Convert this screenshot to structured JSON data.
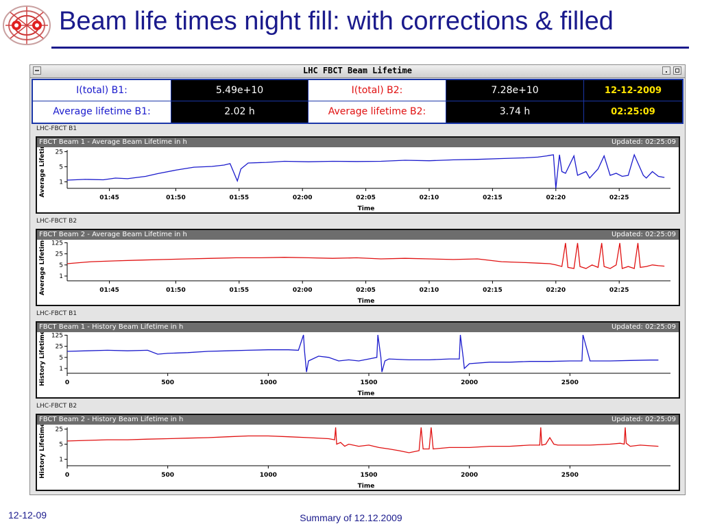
{
  "slide": {
    "title": "Beam life times night fill: with corrections & filled",
    "footer_date": "12-12-09",
    "footer_center": "Summary of 12.12.2009",
    "logo_icon": "lhc-logo-icon"
  },
  "window": {
    "title": "LHC FBCT Beam Lifetime"
  },
  "info": {
    "b1_total_label": "I(total) B1:",
    "b1_total_value": "5.49e+10",
    "b2_total_label": "I(total) B2:",
    "b2_total_value": "7.28e+10",
    "b1_life_label": "Average lifetime B1:",
    "b1_life_value": "2.02 h",
    "b2_life_label": "Average lifetime B2:",
    "b2_life_value": "3.74 h",
    "date": "12-12-2009",
    "time": "02:25:09",
    "colors": {
      "b1": "#1a1acc",
      "b2": "#e01010",
      "clock": "#ffe400"
    }
  },
  "panels": [
    {
      "section": "LHC-FBCT B1",
      "title": "FBCT Beam 1 - Average Beam Lifetime in h",
      "updated": "Updated: 02:25:09",
      "ylabel": "Average Lifetime",
      "xlabel": "Time",
      "color": "#1a1acc"
    },
    {
      "section": "LHC-FBCT B2",
      "title": "FBCT Beam 2 - Average Beam Lifetime in h",
      "updated": "Updated: 02:25:09",
      "ylabel": "Average Lifetime",
      "xlabel": "Time",
      "color": "#e01010"
    },
    {
      "section": "LHC-FBCT B1",
      "title": "FBCT Beam 1 - History Beam Lifetime in h",
      "updated": "Updated: 02:25:09",
      "ylabel": "History Lifetime",
      "xlabel": "Time",
      "color": "#1a1acc"
    },
    {
      "section": "LHC-FBCT B2",
      "title": "FBCT Beam 2 - History Beam Lifetime in h",
      "updated": "Updated: 02:25:09",
      "ylabel": "History Lifetime",
      "xlabel": "Time",
      "color": "#e01010"
    }
  ],
  "chart_data": [
    {
      "type": "line",
      "xlabel": "Time",
      "ylabel": "Average Lifetime",
      "xlim": [
        0,
        100
      ],
      "ylim": [
        0.5,
        30
      ],
      "yscale": "log",
      "x_ticks": [
        {
          "pos": 7,
          "label": "01:45"
        },
        {
          "pos": 18,
          "label": "01:50"
        },
        {
          "pos": 28.5,
          "label": "01:55"
        },
        {
          "pos": 39,
          "label": "02:00"
        },
        {
          "pos": 49.5,
          "label": "02:05"
        },
        {
          "pos": 60,
          "label": "02:10"
        },
        {
          "pos": 70.5,
          "label": "02:15"
        },
        {
          "pos": 81,
          "label": "02:20"
        },
        {
          "pos": 91.5,
          "label": "02:25"
        }
      ],
      "y_ticks": [
        {
          "value": 25,
          "label": "25"
        },
        {
          "value": 5,
          "label": "5"
        },
        {
          "value": 1,
          "label": "1"
        }
      ],
      "series": [
        {
          "x": [
            0,
            3,
            6,
            8,
            10,
            13,
            15,
            18,
            21,
            24,
            26,
            27,
            28.2,
            28.8,
            30,
            33,
            36,
            40,
            44,
            48,
            52,
            56,
            60,
            64,
            68,
            72,
            76,
            78,
            79.5,
            80,
            80.6,
            81,
            81.6,
            82,
            82.6,
            84,
            84.6,
            86,
            86.6,
            88,
            89,
            90,
            91,
            92,
            93,
            94,
            95.5,
            96,
            97,
            98,
            99
          ],
          "y": [
            1.2,
            1.3,
            1.25,
            1.5,
            1.4,
            1.8,
            2.4,
            3.5,
            4.8,
            5.2,
            6,
            7,
            1.1,
            4,
            7.5,
            8,
            9,
            8.5,
            9,
            8.8,
            9,
            10,
            9.5,
            10.5,
            11,
            12,
            13,
            14,
            16,
            17,
            18,
            0.4,
            18,
            3,
            2.5,
            16,
            2,
            3,
            1.5,
            4,
            16,
            2,
            2.5,
            1.8,
            2,
            18,
            2,
            1.5,
            3,
            1.8,
            1.6
          ]
        }
      ]
    },
    {
      "type": "line",
      "xlabel": "Time",
      "ylabel": "Average Lifetime",
      "xlim": [
        0,
        100
      ],
      "ylim": [
        0.5,
        130
      ],
      "yscale": "log",
      "x_ticks": [
        {
          "pos": 7,
          "label": "01:45"
        },
        {
          "pos": 18,
          "label": "01:50"
        },
        {
          "pos": 28.5,
          "label": "01:55"
        },
        {
          "pos": 39,
          "label": "02:00"
        },
        {
          "pos": 49.5,
          "label": "02:05"
        },
        {
          "pos": 60,
          "label": "02:10"
        },
        {
          "pos": 70.5,
          "label": "02:15"
        },
        {
          "pos": 81,
          "label": "02:20"
        },
        {
          "pos": 91.5,
          "label": "02:25"
        }
      ],
      "y_ticks": [
        {
          "value": 125,
          "label": "125"
        },
        {
          "value": 25,
          "label": "25"
        },
        {
          "value": 5,
          "label": "5"
        },
        {
          "value": 1,
          "label": "1"
        }
      ],
      "series": [
        {
          "x": [
            0,
            4,
            8,
            12,
            16,
            20,
            24,
            28,
            32,
            36,
            40,
            44,
            48,
            52,
            56,
            60,
            64,
            68,
            72,
            76,
            78,
            80,
            81,
            82,
            82.6,
            83,
            84,
            84.6,
            85,
            86,
            87,
            88,
            88.6,
            89,
            90,
            91,
            91.6,
            92,
            93,
            94,
            94.6,
            95,
            96,
            97,
            98,
            99
          ],
          "y": [
            6,
            8,
            9,
            10,
            11,
            12,
            13,
            14,
            14,
            15,
            14,
            13,
            14,
            12,
            13,
            12,
            11,
            12,
            8,
            7,
            6.5,
            6,
            5,
            4,
            120,
            3.5,
            3,
            120,
            4,
            3,
            5,
            3.5,
            120,
            4,
            3,
            5,
            120,
            3,
            4,
            3,
            120,
            3.5,
            4,
            5,
            4.5,
            4.2
          ]
        }
      ]
    },
    {
      "type": "line",
      "xlabel": "Time",
      "ylabel": "History Lifetime",
      "xlim": [
        0,
        3000
      ],
      "ylim": [
        0.5,
        130
      ],
      "yscale": "log",
      "x_ticks": [
        {
          "pos": 0,
          "label": "0"
        },
        {
          "pos": 500,
          "label": "500"
        },
        {
          "pos": 1000,
          "label": "1000"
        },
        {
          "pos": 1500,
          "label": "1500"
        },
        {
          "pos": 2000,
          "label": "2000"
        },
        {
          "pos": 2500,
          "label": "2500"
        }
      ],
      "y_ticks": [
        {
          "value": 125,
          "label": "125"
        },
        {
          "value": 25,
          "label": "25"
        },
        {
          "value": 5,
          "label": "5"
        },
        {
          "value": 1,
          "label": "1"
        }
      ],
      "series": [
        {
          "x": [
            0,
            100,
            200,
            300,
            400,
            450,
            500,
            600,
            700,
            800,
            900,
            1000,
            1100,
            1150,
            1175,
            1180,
            1190,
            1200,
            1250,
            1300,
            1350,
            1400,
            1450,
            1500,
            1540,
            1545,
            1560,
            1565,
            1580,
            1600,
            1700,
            1800,
            1900,
            1950,
            1955,
            1970,
            1975,
            2000,
            2100,
            2200,
            2300,
            2400,
            2500,
            2560,
            2565,
            2600,
            2605,
            2700,
            2800,
            2900,
            2940
          ],
          "y": [
            12,
            13,
            14,
            13,
            14,
            8,
            9,
            10,
            12,
            13,
            14,
            15,
            15,
            14,
            130,
            14,
            0.6,
            3,
            6,
            5,
            3,
            3.5,
            3,
            4,
            5,
            130,
            5,
            0.6,
            3,
            4,
            3.5,
            3.5,
            4,
            4,
            130,
            4,
            1,
            2,
            2.5,
            2.5,
            2.8,
            2.8,
            3,
            3,
            130,
            3,
            3,
            3,
            3.2,
            3.4,
            3.4
          ]
        }
      ]
    },
    {
      "type": "line",
      "xlabel": "Time",
      "ylabel": "History Lifetime",
      "xlim": [
        0,
        3000
      ],
      "ylim": [
        0.5,
        30
      ],
      "yscale": "log",
      "x_ticks": [
        {
          "pos": 0,
          "label": "0"
        },
        {
          "pos": 500,
          "label": "500"
        },
        {
          "pos": 1000,
          "label": "1000"
        },
        {
          "pos": 1500,
          "label": "1500"
        },
        {
          "pos": 2000,
          "label": "2000"
        },
        {
          "pos": 2500,
          "label": "2500"
        }
      ],
      "y_ticks": [
        {
          "value": 25,
          "label": "25"
        },
        {
          "value": 5,
          "label": "5"
        },
        {
          "value": 1,
          "label": "1"
        }
      ],
      "series": [
        {
          "x": [
            0,
            100,
            200,
            300,
            400,
            500,
            600,
            700,
            800,
            900,
            1000,
            1100,
            1200,
            1300,
            1330,
            1335,
            1340,
            1360,
            1380,
            1400,
            1450,
            1500,
            1550,
            1600,
            1650,
            1700,
            1750,
            1760,
            1770,
            1800,
            1810,
            1820,
            1900,
            2000,
            2100,
            2200,
            2300,
            2350,
            2355,
            2360,
            2380,
            2400,
            2420,
            2440,
            2500,
            2600,
            2700,
            2750,
            2770,
            2775,
            2780,
            2800,
            2850,
            2900,
            2940
          ],
          "y": [
            7,
            7.5,
            8,
            8,
            8.5,
            9,
            9.5,
            10,
            11,
            12,
            12,
            11,
            10,
            9,
            8,
            30,
            5,
            6,
            4,
            5,
            4,
            4.5,
            3.5,
            3,
            2.5,
            2,
            2.5,
            30,
            3,
            3,
            30,
            3,
            3.5,
            3.5,
            4,
            4,
            4.5,
            4.5,
            30,
            4.5,
            5,
            10,
            5,
            4.5,
            4.5,
            4.5,
            5,
            5.5,
            5,
            30,
            5.5,
            4,
            4.5,
            4.2,
            4
          ]
        }
      ]
    }
  ]
}
